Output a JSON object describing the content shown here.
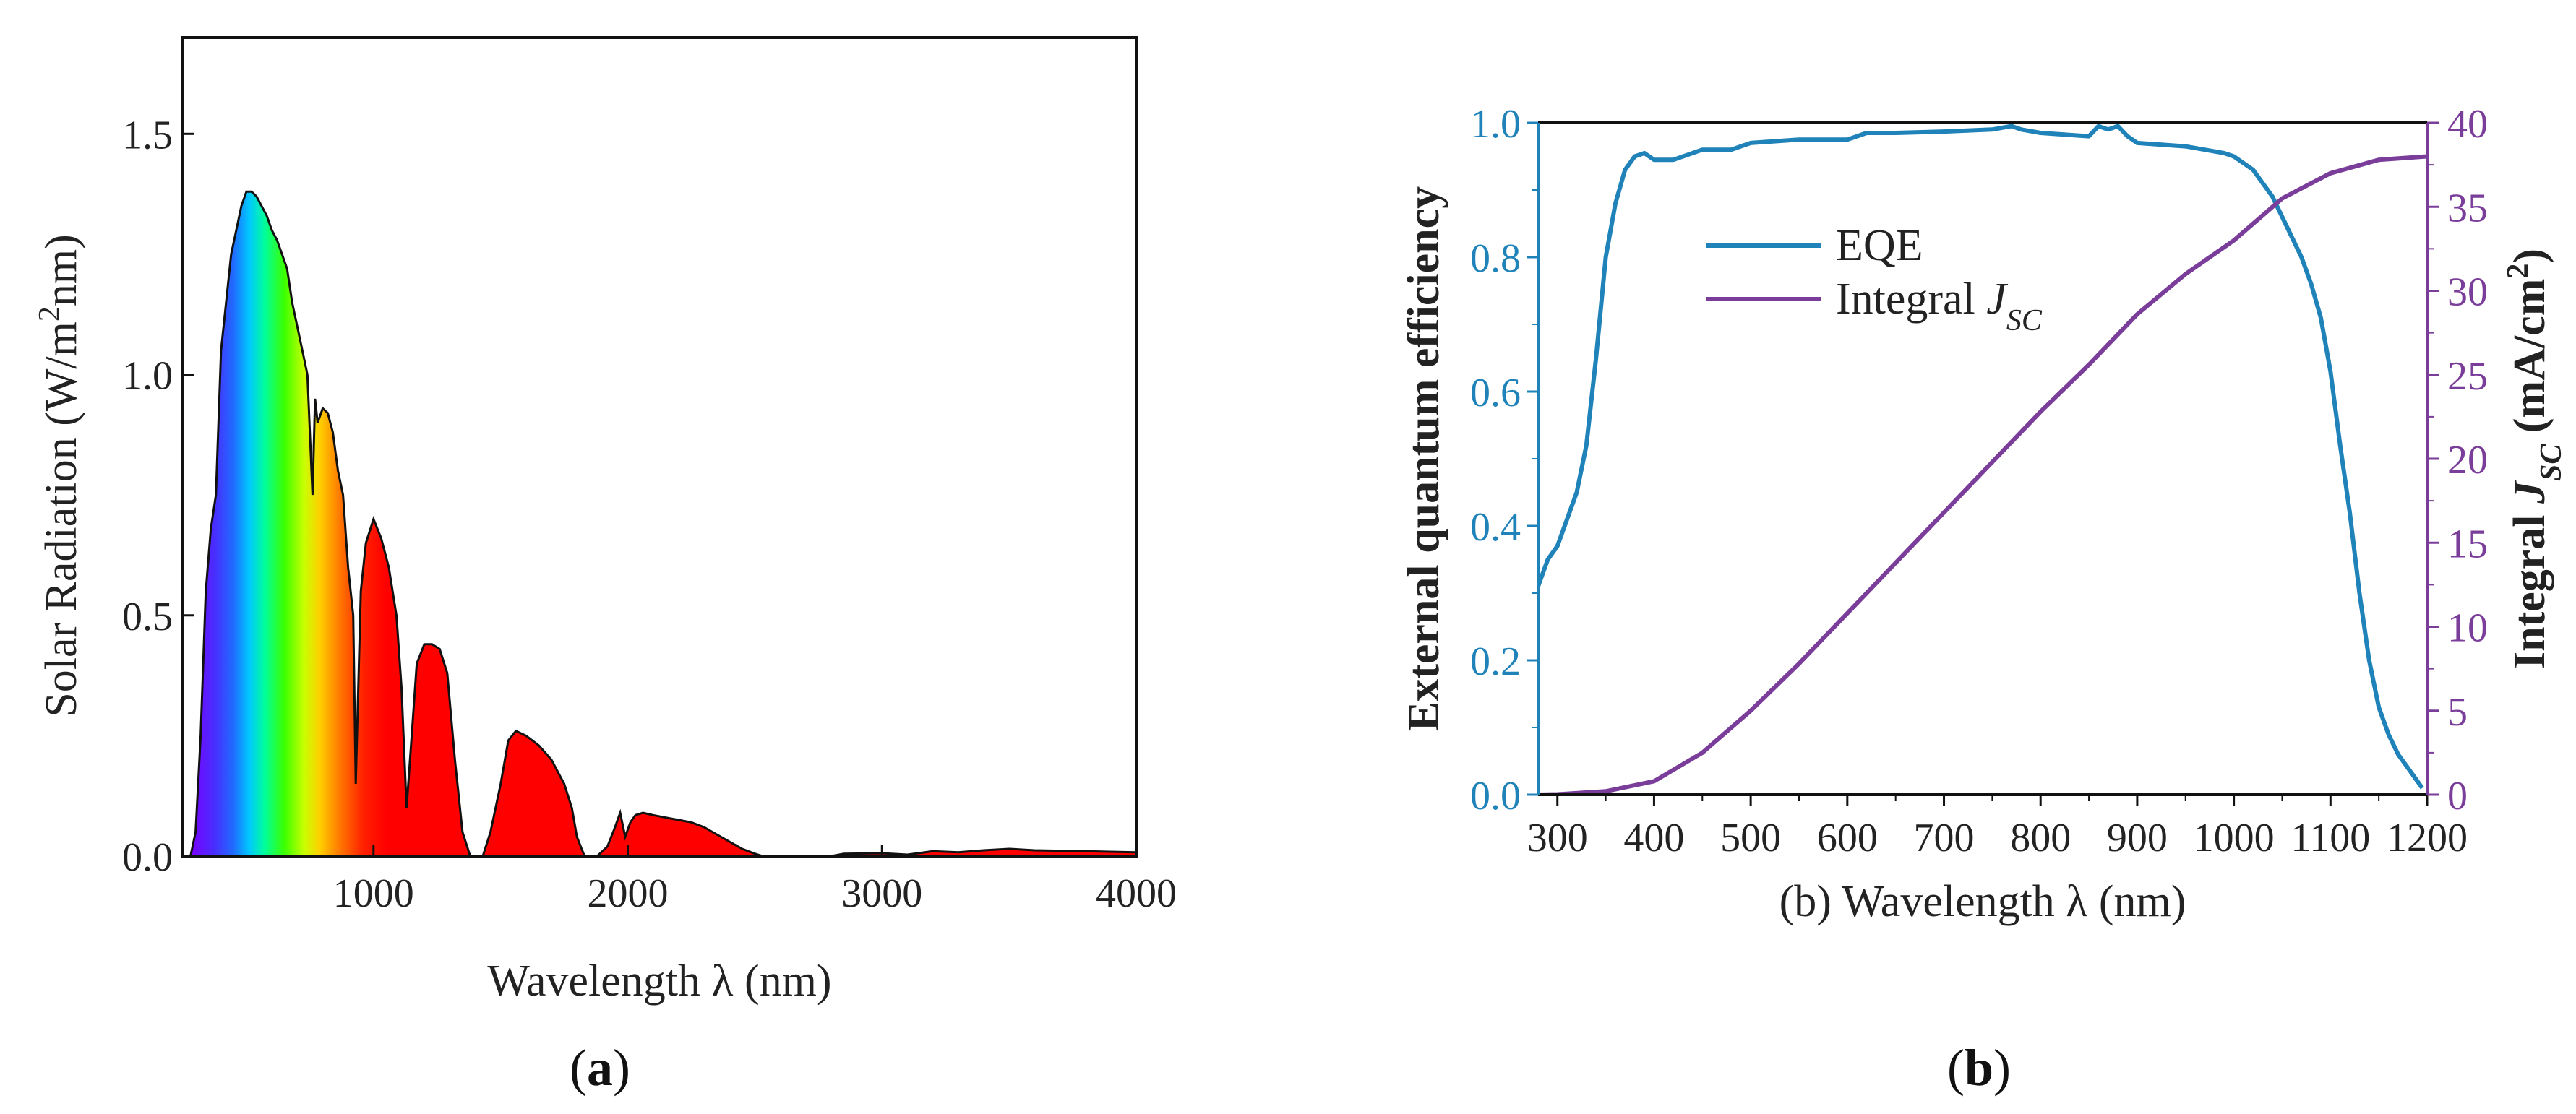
{
  "chart_data": [
    {
      "panel": "a",
      "type": "area",
      "xlabel": "Wavelength λ (nm)",
      "ylabel_prefix": "Solar Radiation (W/m",
      "ylabel_sup": "2",
      "ylabel_suffix": "nm)",
      "xlim": [
        250,
        4000
      ],
      "ylim": [
        0,
        1.7
      ],
      "x_ticks": [
        1000,
        2000,
        3000,
        4000
      ],
      "x_tick_labels": [
        "1000",
        "2000",
        "3000",
        "4000"
      ],
      "y_ticks": [
        0.0,
        0.5,
        1.0,
        1.5
      ],
      "y_tick_labels": [
        "0.0",
        "0.5",
        "1.0",
        "1.5"
      ],
      "series": [
        {
          "x": [
            280,
            300,
            320,
            340,
            360,
            380,
            400,
            420,
            440,
            460,
            480,
            500,
            520,
            540,
            560,
            580,
            600,
            620,
            640,
            660,
            680,
            700,
            720,
            740,
            760,
            770,
            780,
            800,
            820,
            840,
            860,
            880,
            900,
            920,
            930,
            950,
            970,
            1000,
            1030,
            1060,
            1090,
            1110,
            1130,
            1150,
            1170,
            1200,
            1230,
            1260,
            1290,
            1320,
            1350,
            1380,
            1400,
            1430,
            1460,
            1500,
            1530,
            1560,
            1600,
            1650,
            1700,
            1750,
            1780,
            1800,
            1830,
            1880,
            1920,
            1950,
            1970,
            1990,
            2010,
            2030,
            2060,
            2100,
            2150,
            2200,
            2250,
            2300,
            2350,
            2400,
            2450,
            2500,
            2530,
            2600,
            2800,
            2850,
            3000,
            3100,
            3200,
            3300,
            3400,
            3500,
            3600,
            3800,
            4000
          ],
          "y": [
            0.0,
            0.05,
            0.25,
            0.55,
            0.68,
            0.75,
            1.05,
            1.15,
            1.25,
            1.3,
            1.35,
            1.38,
            1.38,
            1.37,
            1.35,
            1.33,
            1.3,
            1.28,
            1.25,
            1.22,
            1.15,
            1.1,
            1.05,
            1.0,
            0.75,
            0.95,
            0.9,
            0.93,
            0.92,
            0.88,
            0.8,
            0.75,
            0.6,
            0.5,
            0.15,
            0.55,
            0.65,
            0.7,
            0.66,
            0.6,
            0.5,
            0.35,
            0.1,
            0.25,
            0.4,
            0.44,
            0.44,
            0.43,
            0.38,
            0.2,
            0.05,
            0.0,
            0.0,
            0.0,
            0.05,
            0.15,
            0.24,
            0.26,
            0.25,
            0.23,
            0.2,
            0.15,
            0.1,
            0.04,
            0.0,
            0.0,
            0.02,
            0.06,
            0.09,
            0.04,
            0.07,
            0.085,
            0.09,
            0.085,
            0.08,
            0.075,
            0.07,
            0.06,
            0.045,
            0.03,
            0.015,
            0.005,
            0.0,
            0.0,
            0.0,
            0.005,
            0.006,
            0.003,
            0.01,
            0.008,
            0.012,
            0.015,
            0.012,
            0.01,
            0.008
          ],
          "fill": "spectrum (violet to red up to ~1000 nm, red beyond)"
        }
      ]
    },
    {
      "panel": "b",
      "type": "line",
      "xlabel": "(b) Wavelength λ (nm)",
      "ylabel_left": "External quantum efficiency",
      "ylabel_right_prefix": "Integral ",
      "ylabel_right_var": "J",
      "ylabel_right_sub": "SC",
      "ylabel_right_unit_prefix": " (mA/cm",
      "ylabel_right_unit_sup": "2",
      "ylabel_right_unit_suffix": ")",
      "xlim": [
        280,
        1200
      ],
      "ylim_left": [
        0.0,
        1.0
      ],
      "ylim_right": [
        0,
        40
      ],
      "x_ticks": [
        300,
        400,
        500,
        600,
        700,
        800,
        900,
        1000,
        1100,
        1200
      ],
      "x_tick_labels": [
        "300",
        "400",
        "500",
        "600",
        "700",
        "800",
        "900",
        "1000",
        "1100",
        "1200"
      ],
      "y_left_ticks": [
        0.0,
        0.2,
        0.4,
        0.6,
        0.8,
        1.0
      ],
      "y_left_tick_labels": [
        "0.0",
        "0.2",
        "0.4",
        "0.6",
        "0.8",
        "1.0"
      ],
      "y_right_ticks": [
        0,
        5,
        10,
        15,
        20,
        25,
        30,
        35,
        40
      ],
      "y_right_tick_labels": [
        "0",
        "5",
        "10",
        "15",
        "20",
        "25",
        "30",
        "35",
        "40"
      ],
      "legend": {
        "placement": "upper-left",
        "entries": [
          {
            "label": "EQE",
            "color": "#1f82b8"
          },
          {
            "label_prefix": "Integral ",
            "label_var": "J",
            "label_sub": "SC",
            "color": "#7a3d9a"
          }
        ]
      },
      "series": [
        {
          "name": "EQE",
          "axis": "left",
          "color": "#1f82b8",
          "x": [
            280,
            290,
            300,
            310,
            320,
            330,
            340,
            350,
            360,
            370,
            380,
            390,
            400,
            420,
            450,
            480,
            500,
            550,
            600,
            620,
            650,
            700,
            750,
            770,
            780,
            800,
            850,
            860,
            870,
            880,
            890,
            900,
            950,
            990,
            1000,
            1010,
            1020,
            1030,
            1040,
            1050,
            1060,
            1070,
            1080,
            1090,
            1100,
            1110,
            1120,
            1130,
            1140,
            1150,
            1160,
            1170,
            1180,
            1190,
            1195
          ],
          "y": [
            0.31,
            0.35,
            0.37,
            0.41,
            0.45,
            0.52,
            0.65,
            0.8,
            0.88,
            0.93,
            0.95,
            0.955,
            0.945,
            0.945,
            0.96,
            0.96,
            0.97,
            0.975,
            0.975,
            0.985,
            0.985,
            0.987,
            0.99,
            0.995,
            0.99,
            0.985,
            0.98,
            0.995,
            0.99,
            0.995,
            0.98,
            0.97,
            0.965,
            0.955,
            0.95,
            0.94,
            0.93,
            0.91,
            0.89,
            0.86,
            0.83,
            0.8,
            0.76,
            0.71,
            0.63,
            0.52,
            0.42,
            0.3,
            0.2,
            0.13,
            0.09,
            0.06,
            0.04,
            0.02,
            0.01
          ]
        },
        {
          "name_prefix": "Integral ",
          "name_var": "J",
          "name_sub": "SC",
          "axis": "right",
          "color": "#7a3d9a",
          "x": [
            280,
            300,
            350,
            400,
            450,
            500,
            550,
            600,
            650,
            700,
            750,
            800,
            850,
            900,
            950,
            1000,
            1050,
            1100,
            1150,
            1200
          ],
          "y": [
            0,
            0.02,
            0.2,
            0.8,
            2.5,
            5.0,
            7.8,
            10.8,
            13.8,
            16.8,
            19.8,
            22.8,
            25.6,
            28.6,
            31.0,
            33.0,
            35.5,
            37.0,
            37.8,
            38.0
          ]
        }
      ]
    }
  ],
  "panel_labels": {
    "a": "a",
    "b": "b"
  }
}
